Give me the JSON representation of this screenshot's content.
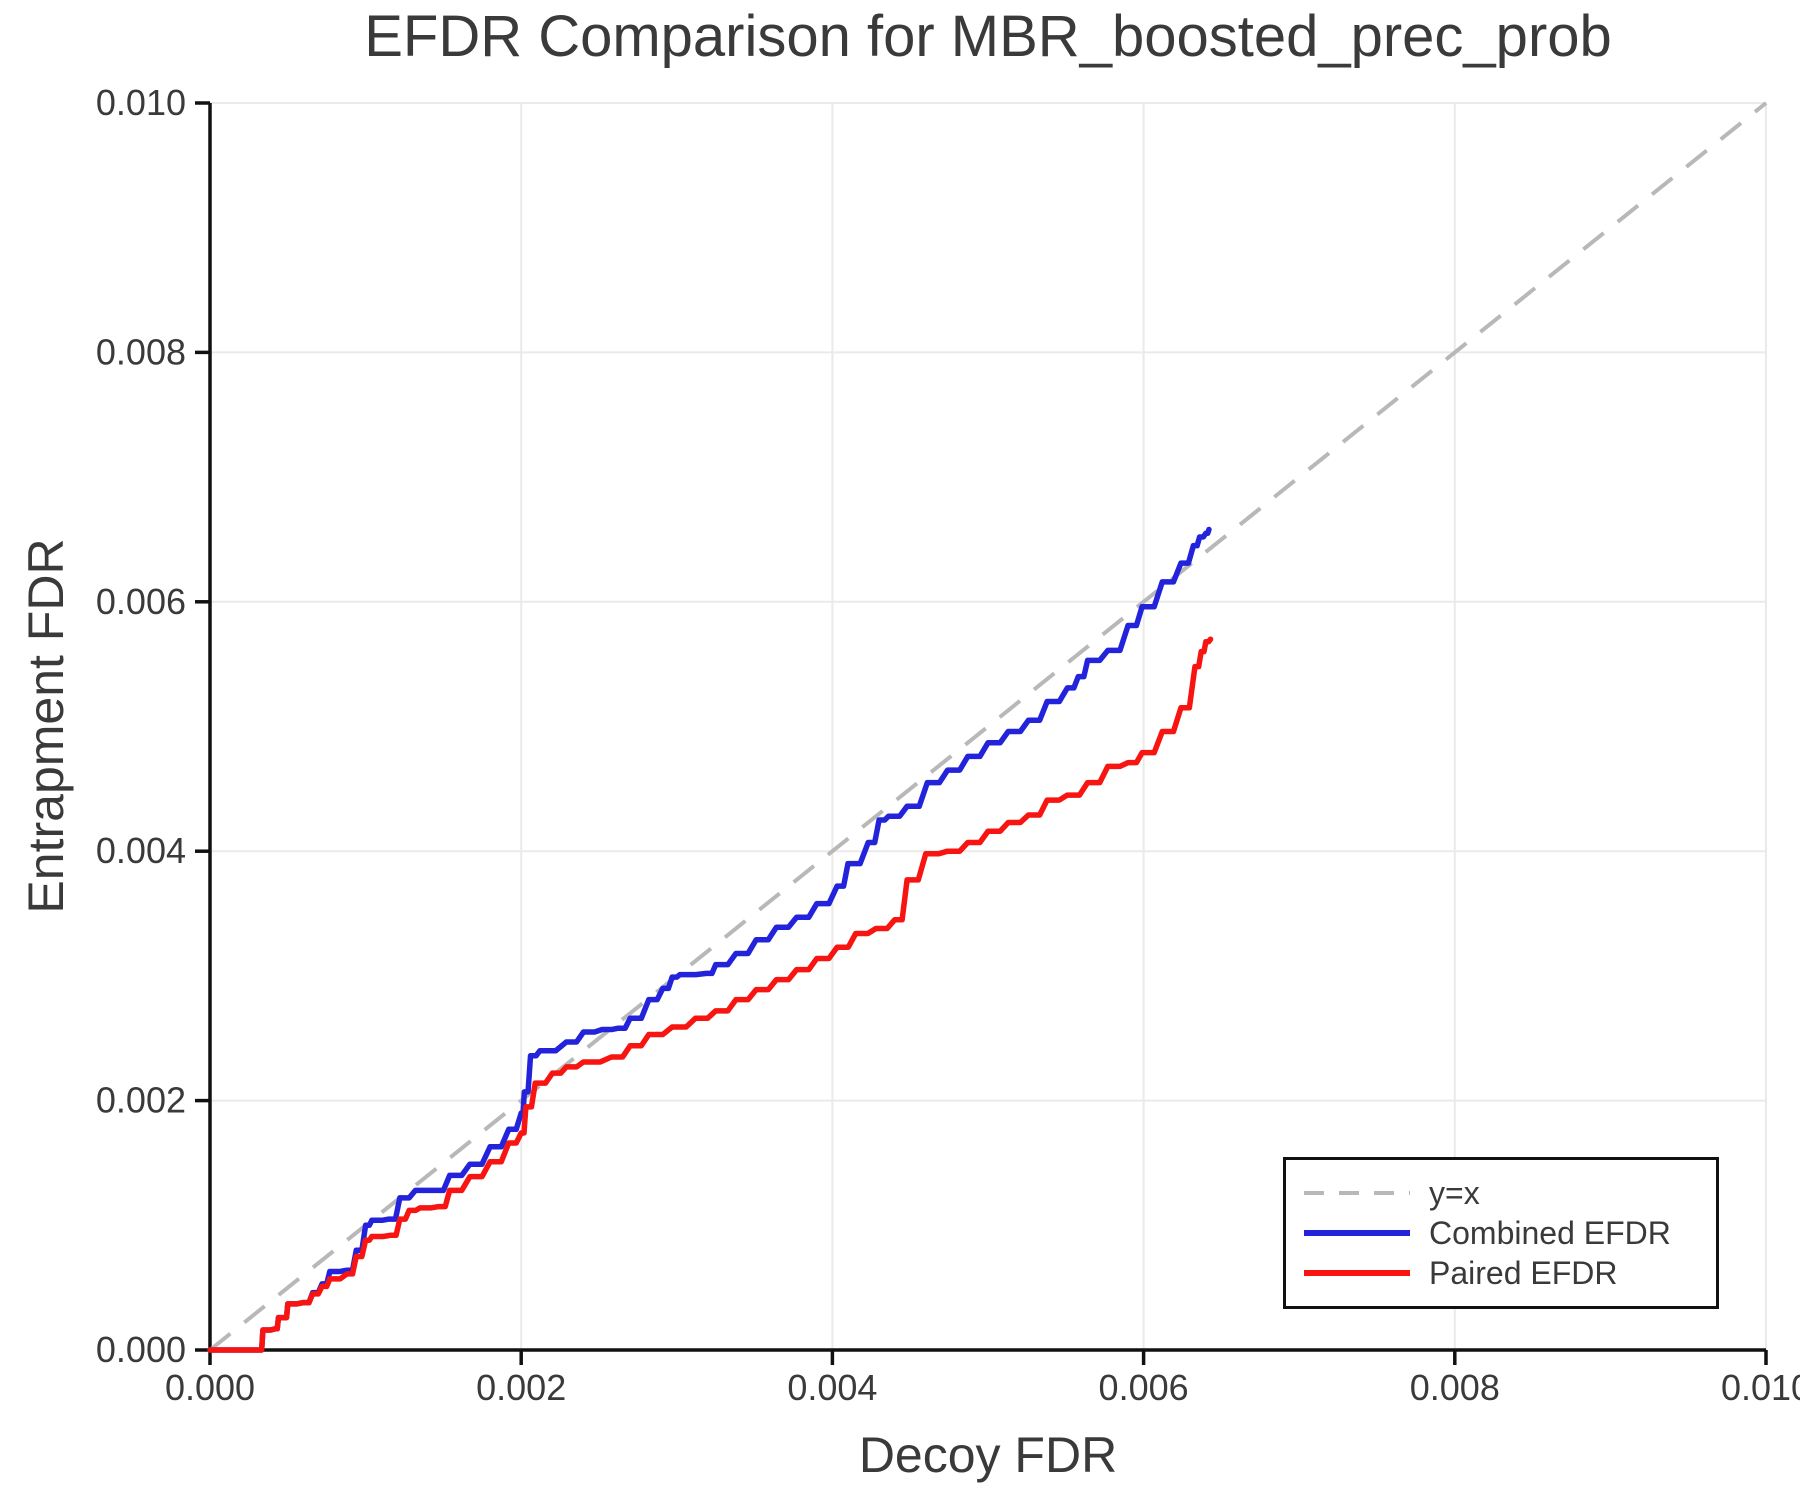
{
  "chart_data": {
    "type": "line",
    "title": "EFDR Comparison for MBR_boosted_prec_prob",
    "xlabel": "Decoy FDR",
    "ylabel": "Entrapment FDR",
    "xlim": [
      0,
      0.01
    ],
    "ylim": [
      0,
      0.01
    ],
    "grid": true,
    "legend_position": "lower right",
    "xtick_values": [
      0.0,
      0.002,
      0.004,
      0.006,
      0.008,
      0.01
    ],
    "xtick_labels": [
      "0.000",
      "0.002",
      "0.004",
      "0.006",
      "0.008",
      "0.010"
    ],
    "ytick_values": [
      0.0,
      0.002,
      0.004,
      0.006,
      0.008,
      0.01
    ],
    "ytick_labels": [
      "0.000",
      "0.002",
      "0.004",
      "0.006",
      "0.008",
      "0.010"
    ],
    "colors": {
      "text": "#3a3a3a",
      "spine": "#111111",
      "grid": "#eaeaea",
      "reference": "#b8b8b8",
      "combined": "#2323dc",
      "paired": "#f81411"
    },
    "reference_line": {
      "label": "y=x",
      "style": "dashed",
      "from": [
        0,
        0
      ],
      "to": [
        0.01,
        0.01
      ]
    },
    "series": [
      {
        "name": "Combined EFDR",
        "color": "#2323dc",
        "x": [
          0,
          0.00032,
          0.00034,
          0.00042,
          0.00044,
          0.00048,
          0.0005,
          0.0006,
          0.00066,
          0.00072,
          0.00077,
          0.00088,
          0.00094,
          0.001,
          0.00104,
          0.00115,
          0.00122,
          0.00132,
          0.00144,
          0.00154,
          0.00167,
          0.0018,
          0.00192,
          0.002,
          0.00202,
          0.00206,
          0.00212,
          0.00229,
          0.0024,
          0.00252,
          0.00262,
          0.0027,
          0.00282,
          0.00291,
          0.00297,
          0.00302,
          0.00319,
          0.00325,
          0.00338,
          0.00351,
          0.00364,
          0.00377,
          0.0039,
          0.00403,
          0.0041,
          0.00423,
          0.0043,
          0.00436,
          0.00448,
          0.00461,
          0.00474,
          0.00487,
          0.005,
          0.00513,
          0.00526,
          0.00538,
          0.00551,
          0.00558,
          0.00564,
          0.00577,
          0.0059,
          0.00599,
          0.00612,
          0.00624,
          0.00632,
          0.00636,
          0.0064,
          0.00642
        ],
        "y": [
          0,
          0,
          0.00016,
          0.00017,
          0.00026,
          0.00026,
          0.00037,
          0.00038,
          0.00046,
          0.00053,
          0.00063,
          0.00064,
          0.0008,
          0.001,
          0.00104,
          0.00105,
          0.00122,
          0.00128,
          0.00128,
          0.0014,
          0.00149,
          0.00163,
          0.00177,
          0.0019,
          0.00207,
          0.00236,
          0.0024,
          0.00247,
          0.00255,
          0.00257,
          0.00258,
          0.00266,
          0.00281,
          0.0029,
          0.00299,
          0.00301,
          0.00302,
          0.00309,
          0.00318,
          0.00329,
          0.00339,
          0.00347,
          0.00358,
          0.00372,
          0.0039,
          0.00407,
          0.00425,
          0.00428,
          0.00436,
          0.00455,
          0.00465,
          0.00476,
          0.00487,
          0.00496,
          0.00505,
          0.0052,
          0.00531,
          0.0054,
          0.00553,
          0.00561,
          0.00581,
          0.00596,
          0.00616,
          0.00631,
          0.00645,
          0.00652,
          0.00655,
          0.00658
        ]
      },
      {
        "name": "Paired EFDR",
        "color": "#f81411",
        "x": [
          0,
          0.00032,
          0.00034,
          0.00042,
          0.00044,
          0.00048,
          0.0005,
          0.0006,
          0.00066,
          0.00072,
          0.00077,
          0.00088,
          0.00094,
          0.001,
          0.00104,
          0.00116,
          0.00122,
          0.00128,
          0.00135,
          0.00147,
          0.00154,
          0.00167,
          0.0018,
          0.00192,
          0.002,
          0.00203,
          0.00209,
          0.0022,
          0.00229,
          0.0024,
          0.00258,
          0.0027,
          0.00282,
          0.00297,
          0.00312,
          0.00325,
          0.00338,
          0.00351,
          0.00364,
          0.00377,
          0.0039,
          0.00403,
          0.00415,
          0.00428,
          0.0044,
          0.00448,
          0.0046,
          0.00474,
          0.00487,
          0.005,
          0.00513,
          0.00526,
          0.00538,
          0.00551,
          0.00564,
          0.00577,
          0.0059,
          0.00599,
          0.00612,
          0.00624,
          0.00633,
          0.00637,
          0.0064,
          0.00643
        ],
        "y": [
          0,
          0,
          0.00016,
          0.00017,
          0.00026,
          0.00026,
          0.00037,
          0.00038,
          0.00045,
          0.00051,
          0.00057,
          0.00061,
          0.00075,
          0.00088,
          0.00091,
          0.00092,
          0.00105,
          0.00112,
          0.00114,
          0.00115,
          0.00128,
          0.00139,
          0.00151,
          0.00166,
          0.00174,
          0.00195,
          0.00214,
          0.00222,
          0.00227,
          0.00231,
          0.00235,
          0.00244,
          0.00253,
          0.00259,
          0.00266,
          0.00272,
          0.00281,
          0.00289,
          0.00297,
          0.00305,
          0.00314,
          0.00323,
          0.00334,
          0.00338,
          0.00345,
          0.00377,
          0.00398,
          0.004,
          0.00407,
          0.00416,
          0.00423,
          0.00429,
          0.00441,
          0.00445,
          0.00455,
          0.00468,
          0.00471,
          0.00479,
          0.00496,
          0.00515,
          0.00548,
          0.0056,
          0.00568,
          0.0057
        ]
      }
    ]
  },
  "legend": {
    "items": [
      {
        "label": "y=x",
        "color": "#b8b8b8",
        "dashed": true
      },
      {
        "label": "Combined EFDR",
        "color": "#2323dc",
        "dashed": false
      },
      {
        "label": "Paired EFDR",
        "color": "#f81411",
        "dashed": false
      }
    ]
  }
}
